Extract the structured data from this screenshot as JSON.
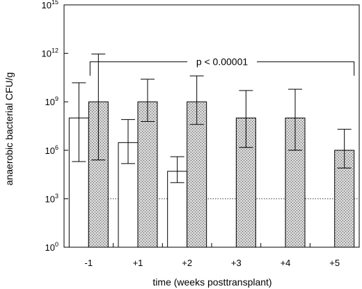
{
  "chart_data": {
    "type": "bar",
    "xlabel": "time (weeks posttransplant)",
    "ylabel": "anaerobic bacterial CFU/g",
    "yscale": "log",
    "ylim": [
      1,
      1000000000000000
    ],
    "yticks": [
      {
        "value": 1,
        "base": "10",
        "exp": "0"
      },
      {
        "value": 1000,
        "base": "10",
        "exp": "3"
      },
      {
        "value": 1000000,
        "base": "10",
        "exp": "6"
      },
      {
        "value": 1000000000,
        "base": "10",
        "exp": "9"
      },
      {
        "value": 1000000000000,
        "base": "10",
        "exp": "12"
      },
      {
        "value": 1000000000000000,
        "base": "10",
        "exp": "15"
      }
    ],
    "categories": [
      "-1",
      "+1",
      "+2",
      "+3",
      "+4",
      "+5"
    ],
    "series": [
      {
        "fill": "open",
        "values": [
          100000000,
          3000000,
          50000,
          null,
          null,
          null
        ],
        "error_low": [
          200000,
          150000,
          10000,
          null,
          null,
          null
        ],
        "error_high": [
          15000000000,
          80000000,
          400000,
          null,
          null,
          null
        ]
      },
      {
        "fill": "stippled",
        "values": [
          1000000000,
          1000000000,
          1000000000,
          100000000,
          100000000,
          1000000
        ],
        "error_low": [
          250000,
          60000000,
          40000000,
          1500000,
          1000000,
          80000
        ],
        "error_high": [
          900000000000,
          25000000000,
          40000000000,
          5000000000,
          6000000000,
          20000000
        ]
      }
    ],
    "reference_line": {
      "value": 1000,
      "style": "dotted"
    },
    "annotation": {
      "text": "p < 0.00001",
      "from_category": "-1",
      "to_category": "+5",
      "at_value": 300000000000
    },
    "colors": {
      "open_fill": "#ffffff",
      "stipple_fill": "#d4d4d4",
      "stroke": "#000000"
    },
    "grid": false,
    "legend": "none"
  }
}
